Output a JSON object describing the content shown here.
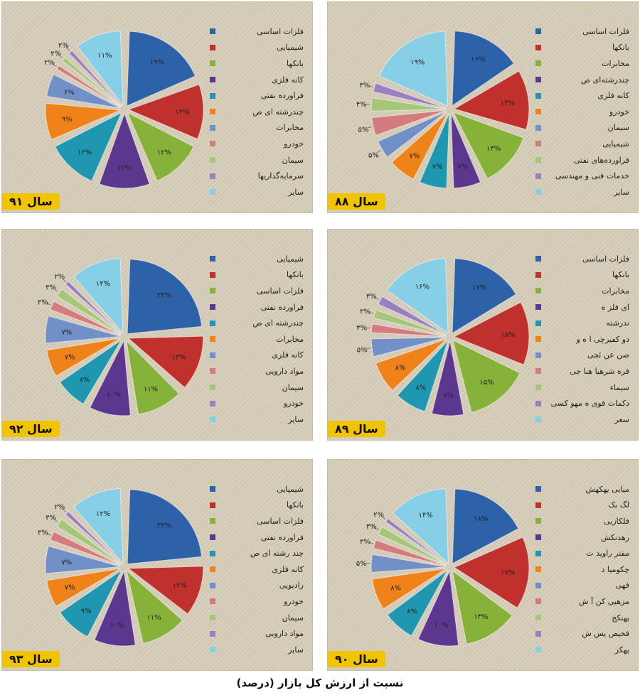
{
  "caption": "نسبت از ارزش کل بازار (درصد)",
  "colors": [
    "#2e62a8",
    "#c0302c",
    "#86b23a",
    "#5c3790",
    "#1f97b0",
    "#ef8218",
    "#7290c8",
    "#d37b7d",
    "#a6c779",
    "#9a7fc1",
    "#87cfe6"
  ],
  "chart_data": [
    {
      "type": "pie",
      "year_label": "سال ۹۱",
      "labels": [
        "فلزات اساسی",
        "شیمیایی",
        "بانکها",
        "کانه فلزی",
        "فراورده نفتی",
        "چندرشته ای ص",
        "مخابرات",
        "خودرو",
        "سیمان",
        "سرمایه‌گذاریها",
        "سایر"
      ],
      "values": [
        19,
        13,
        12,
        12,
        12,
        9,
        6,
        2,
        2,
        2,
        11
      ],
      "value_labels": [
        "۱۹%",
        "۱۳%",
        "۱۲%",
        "۱۲%",
        "۱۲%",
        "۹%",
        "۶%",
        "۲%",
        "۲%",
        "۲%",
        "۱۱%"
      ]
    },
    {
      "type": "pie",
      "year_label": "سال ۸۸",
      "labels": [
        "فلزات اساسی",
        "بانکها",
        "مخابرات",
        "چندرشته‌ای ص",
        "کانه فلزی",
        "خودرو",
        "سیمان",
        "شیمیایی",
        "فراورده‌های نفتی",
        "خدمات فنی و مهندسی",
        "سایر"
      ],
      "values": [
        16,
        14,
        13,
        7,
        7,
        7,
        5,
        5,
        4,
        3,
        19
      ],
      "value_labels": [
        "۱۶%",
        "۱۴%",
        "۱۳%",
        "۷%",
        "۷%",
        "۷%",
        "۵%",
        "۵%",
        "۴%",
        "۳%",
        "۱۹%"
      ]
    },
    {
      "type": "pie",
      "year_label": "سال ۹۲",
      "labels": [
        "شیمیایی",
        "بانکها",
        "فلزات اساسی",
        "فراورده نفتی",
        "چندرشته ای ص",
        "مخابرات",
        "کانه فلزی",
        "مواد دارویی",
        "سیمان",
        "خودرو",
        "سایر"
      ],
      "values": [
        24,
        13,
        11,
        10,
        8,
        7,
        7,
        3,
        3,
        2,
        12
      ],
      "value_labels": [
        "۲۴%",
        "۱۳%",
        "۱۱%",
        "۱۰%",
        "۸%",
        "۷%",
        "۷%",
        "۳%",
        "۳%",
        "۲%",
        "۱۲%"
      ]
    },
    {
      "type": "pie",
      "year_label": "سال ۸۹",
      "labels": [
        "فلزات اساسی",
        "بانکها",
        "مخابرات",
        "ای فلز ه",
        "ندرشته",
        "دو کفیرچی ا ه و",
        "صن عن ئجی",
        "فره شرهیا هنا جی",
        "سیماء",
        "دکمات فوی ه مهو کسی",
        "سغر"
      ],
      "values": [
        17,
        15,
        15,
        8,
        8,
        8,
        5,
        3,
        3,
        3,
        16
      ],
      "value_labels": [
        "۱۷%",
        "۱۵%",
        "۱۵%",
        "۸%",
        "۸%",
        "۸%",
        "۵%",
        "۳%",
        "۳%",
        "۳%",
        "۱۶%"
      ]
    },
    {
      "type": "pie",
      "year_label": "سال ۹۳",
      "labels": [
        "شیمیایی",
        "بانکها",
        "فلزات اساسی",
        "فراورده نفتی",
        "چند رشته ای ص",
        "کانه فلزی",
        "رادیویی",
        "خودرو",
        "سیمان",
        "مواد دارویی",
        "سایر"
      ],
      "values": [
        24,
        12,
        11,
        10,
        9,
        7,
        7,
        3,
        3,
        2,
        12
      ],
      "value_labels": [
        "۲۴%",
        "۱۲%",
        "۱۱%",
        "۱۰%",
        "۹%",
        "۷%",
        "۷%",
        "۳%",
        "۳%",
        "۲%",
        "۱۲%"
      ]
    },
    {
      "type": "pie",
      "year_label": "سال ۹۰",
      "labels": [
        "میایی یهکهش",
        "لگ بک",
        "فلکازیی",
        "رهدنکش",
        "مفتر راوید ت",
        "چکومیا د",
        "فهی",
        "مزهیی کن آ ش",
        "پهنکخ",
        "فخیص یس ش",
        "پهکز"
      ],
      "values": [
        18,
        17,
        13,
        10,
        8,
        8,
        5,
        3,
        3,
        2,
        14
      ],
      "value_labels": [
        "۱۸%",
        "۱۷%",
        "۱۳%",
        "۱۰%",
        "۸%",
        "۸%",
        "۵%",
        "۳%",
        "۳%",
        "۲%",
        "۱۴%"
      ]
    }
  ]
}
